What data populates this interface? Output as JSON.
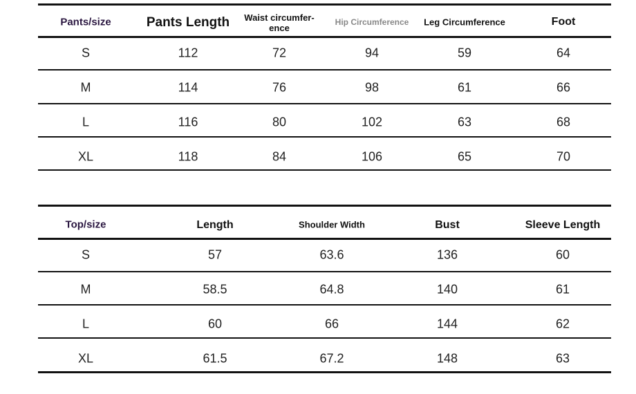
{
  "pants_table": {
    "headers": [
      "Pants/size",
      "Pants Length",
      "Waist circumfer-ence",
      "Hip Circumference",
      "Leg Circumference",
      "Foot"
    ],
    "waist_header_lines": [
      "Waist circumfer-",
      "ence"
    ],
    "rows": [
      [
        "S",
        "112",
        "72",
        "94",
        "59",
        "64"
      ],
      [
        "M",
        "114",
        "76",
        "98",
        "61",
        "66"
      ],
      [
        "L",
        "116",
        "80",
        "102",
        "63",
        "68"
      ],
      [
        "XL",
        "118",
        "84",
        "106",
        "65",
        "70"
      ]
    ]
  },
  "top_table": {
    "headers": [
      "Top/size",
      "Length",
      "Shoulder Width",
      "Bust",
      "Sleeve Length"
    ],
    "rows": [
      [
        "S",
        "57",
        "63.6",
        "136",
        "60"
      ],
      [
        "M",
        "58.5",
        "64.8",
        "140",
        "61"
      ],
      [
        "L",
        "60",
        "66",
        "144",
        "62"
      ],
      [
        "XL",
        "61.5",
        "67.2",
        "148",
        "63"
      ]
    ]
  }
}
